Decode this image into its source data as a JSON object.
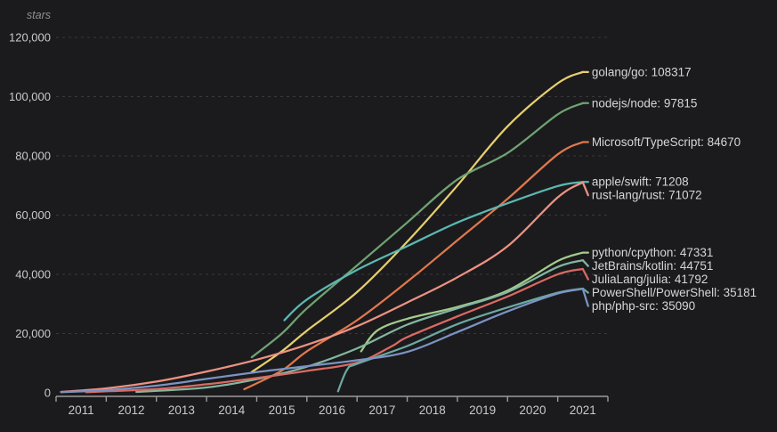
{
  "theme": {
    "background": "#1b1b1d",
    "grid_color": "#3a3a3d",
    "axis_color": "#9b9b9b",
    "tick_text_color": "#c9c9c9",
    "label_text_color": "#d6d6d6",
    "ylabel_color": "#8f8f8f"
  },
  "chart_data": {
    "type": "line",
    "title": "",
    "ylabel": "stars",
    "xlabel": "",
    "legend_position": "right-end-labels",
    "grid": "horizontal-dashed",
    "xlim": [
      2011,
      2022
    ],
    "ylim": [
      0,
      120000
    ],
    "x_tick_labels": [
      "2011",
      "2012",
      "2013",
      "2014",
      "2015",
      "2016",
      "2017",
      "2018",
      "2019",
      "2020",
      "2021"
    ],
    "y_tick_values": [
      0,
      20000,
      40000,
      60000,
      80000,
      100000,
      120000
    ],
    "y_tick_labels": [
      "0",
      "20,000",
      "40,000",
      "60,000",
      "80,000",
      "100,000",
      "120,000"
    ],
    "series": [
      {
        "name": "golang/go",
        "final_value": 108317,
        "label": "golang/go: 108317",
        "color": "#e6cf6e",
        "points": [
          [
            2014.9,
            7000
          ],
          [
            2015.5,
            14000
          ],
          [
            2016,
            21000
          ],
          [
            2017,
            34000
          ],
          [
            2018,
            51000
          ],
          [
            2019,
            70000
          ],
          [
            2020,
            90000
          ],
          [
            2021,
            104500
          ],
          [
            2021.5,
            108317
          ]
        ]
      },
      {
        "name": "nodejs/node",
        "final_value": 97815,
        "label": "nodejs/node: 97815",
        "color": "#6fa373",
        "points": [
          [
            2014.9,
            12000
          ],
          [
            2015.5,
            20000
          ],
          [
            2016,
            28500
          ],
          [
            2017,
            43000
          ],
          [
            2018,
            57500
          ],
          [
            2019,
            72000
          ],
          [
            2020,
            81000
          ],
          [
            2021,
            94000
          ],
          [
            2021.5,
            97815
          ]
        ]
      },
      {
        "name": "Microsoft/TypeScript",
        "final_value": 84670,
        "label": "Microsoft/TypeScript: 84670",
        "color": "#e0784d",
        "points": [
          [
            2014.75,
            1200
          ],
          [
            2015.5,
            7500
          ],
          [
            2016,
            14000
          ],
          [
            2017,
            24500
          ],
          [
            2018,
            37500
          ],
          [
            2019,
            51500
          ],
          [
            2020,
            65500
          ],
          [
            2021,
            80500
          ],
          [
            2021.5,
            84670
          ]
        ]
      },
      {
        "name": "apple/swift",
        "final_value": 71208,
        "label": "apple/swift: 71208",
        "color": "#5cb8b2",
        "points": [
          [
            2015.55,
            24500
          ],
          [
            2016,
            31500
          ],
          [
            2017,
            41500
          ],
          [
            2018,
            49500
          ],
          [
            2019,
            57500
          ],
          [
            2020,
            64000
          ],
          [
            2021,
            69800
          ],
          [
            2021.5,
            71208
          ]
        ]
      },
      {
        "name": "rust-lang/rust",
        "final_value": 71072,
        "label": "rust-lang/rust: 71072",
        "color": "#ee9283",
        "points": [
          [
            2011.1,
            300
          ],
          [
            2012,
            1500
          ],
          [
            2013,
            3800
          ],
          [
            2014,
            7200
          ],
          [
            2015,
            11200
          ],
          [
            2016,
            16200
          ],
          [
            2017,
            22500
          ],
          [
            2018,
            30500
          ],
          [
            2019,
            39000
          ],
          [
            2020,
            49500
          ],
          [
            2021,
            66000
          ],
          [
            2021.5,
            71072
          ]
        ]
      },
      {
        "name": "python/cpython",
        "final_value": 47331,
        "label": "python/cpython: 47331",
        "color": "#a4cb8d",
        "points": [
          [
            2017.08,
            14000
          ],
          [
            2017.4,
            21000
          ],
          [
            2018,
            25000
          ],
          [
            2019,
            29000
          ],
          [
            2020,
            34500
          ],
          [
            2021,
            44500
          ],
          [
            2021.5,
            47331
          ]
        ]
      },
      {
        "name": "JetBrains/kotlin",
        "final_value": 44751,
        "label": "JetBrains/kotlin: 44751",
        "color": "#83b6a0",
        "points": [
          [
            2012.6,
            300
          ],
          [
            2014,
            1800
          ],
          [
            2015,
            4600
          ],
          [
            2016,
            8800
          ],
          [
            2017,
            15000
          ],
          [
            2018,
            23000
          ],
          [
            2019,
            28500
          ],
          [
            2020,
            34000
          ],
          [
            2021,
            42500
          ],
          [
            2021.5,
            44751
          ]
        ]
      },
      {
        "name": "JuliaLang/julia",
        "final_value": 41792,
        "label": "JuliaLang/julia: 41792",
        "color": "#db6a62",
        "points": [
          [
            2011.6,
            200
          ],
          [
            2013,
            1300
          ],
          [
            2014,
            2900
          ],
          [
            2015,
            5000
          ],
          [
            2016,
            7400
          ],
          [
            2017,
            10200
          ],
          [
            2017.7,
            15800
          ],
          [
            2018,
            18800
          ],
          [
            2019,
            25800
          ],
          [
            2020,
            32500
          ],
          [
            2021,
            40000
          ],
          [
            2021.5,
            41792
          ]
        ]
      },
      {
        "name": "PowerShell/PowerShell",
        "final_value": 35181,
        "label": "PowerShell/PowerShell: 35181",
        "color": "#6ba9a1",
        "points": [
          [
            2016.62,
            500
          ],
          [
            2016.8,
            7800
          ],
          [
            2017,
            9800
          ],
          [
            2018,
            15800
          ],
          [
            2019,
            23200
          ],
          [
            2020,
            28800
          ],
          [
            2021,
            33800
          ],
          [
            2021.5,
            35181
          ]
        ]
      },
      {
        "name": "php/php-src",
        "final_value": 35090,
        "label": "php/php-src: 35090",
        "color": "#7b93c4",
        "points": [
          [
            2011.1,
            200
          ],
          [
            2012,
            900
          ],
          [
            2013,
            2400
          ],
          [
            2014,
            4700
          ],
          [
            2015,
            7000
          ],
          [
            2016,
            9000
          ],
          [
            2017,
            11000
          ],
          [
            2018,
            13800
          ],
          [
            2019,
            20500
          ],
          [
            2020,
            27500
          ],
          [
            2021,
            33500
          ],
          [
            2021.5,
            35090
          ]
        ]
      }
    ]
  }
}
